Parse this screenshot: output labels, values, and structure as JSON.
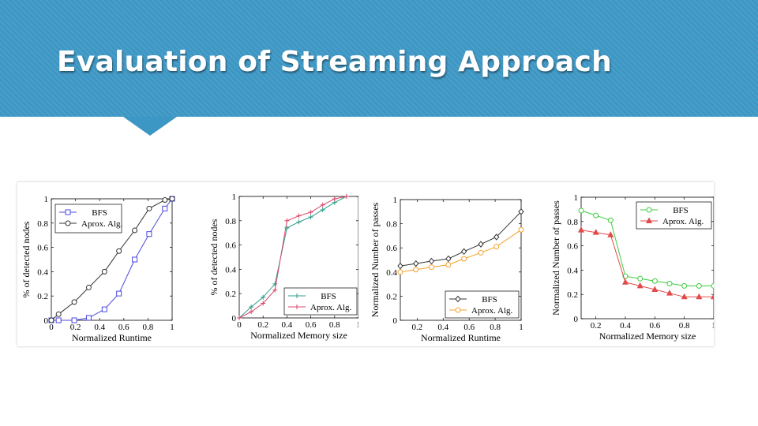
{
  "slide": {
    "title": "Evaluation of Streaming Approach"
  },
  "chart_data": [
    {
      "type": "line",
      "xlabel": "Normalized Runtime",
      "ylabel": "% of detected nodes",
      "xlim": [
        0,
        1
      ],
      "ylim": [
        0,
        1
      ],
      "xticks": [
        0,
        0.2,
        0.4,
        0.6,
        0.8,
        1
      ],
      "yticks": [
        0,
        0.2,
        0.4,
        0.6,
        0.8,
        1
      ],
      "xtick_labels": [
        "0",
        "0.2",
        "0.4",
        "0.6",
        "0.8",
        "1"
      ],
      "ytick_labels": [
        "0",
        "0.2",
        "0.4",
        "0.6",
        "0.8",
        "1"
      ],
      "legend": "top-left",
      "series": [
        {
          "name": "BFS",
          "color": "#4a4ae0",
          "marker": "square",
          "x": [
            0,
            0.06,
            0.19,
            0.31,
            0.44,
            0.56,
            0.69,
            0.81,
            0.94,
            1
          ],
          "y": [
            0,
            0,
            0,
            0.02,
            0.09,
            0.22,
            0.5,
            0.71,
            0.92,
            1
          ]
        },
        {
          "name": "Aprox. Alg.",
          "color": "#333333",
          "marker": "circle",
          "x": [
            0,
            0.06,
            0.19,
            0.31,
            0.44,
            0.56,
            0.69,
            0.81,
            0.94,
            1
          ],
          "y": [
            0,
            0.05,
            0.15,
            0.27,
            0.4,
            0.57,
            0.74,
            0.92,
            0.99,
            1
          ]
        }
      ]
    },
    {
      "type": "line",
      "xlabel": "Normalized Memory size",
      "ylabel": "% of detected nodes",
      "xlim": [
        0,
        1
      ],
      "ylim": [
        0,
        1
      ],
      "xticks": [
        0,
        0.2,
        0.4,
        0.6,
        0.8,
        1
      ],
      "yticks": [
        0,
        0.2,
        0.4,
        0.6,
        0.8,
        1
      ],
      "xtick_labels": [
        "0",
        "0.2",
        "0.4",
        "0.6",
        "0.8",
        "1"
      ],
      "ytick_labels": [
        "0",
        "0.2",
        "0.4",
        "0.6",
        "0.8",
        "1"
      ],
      "legend": "bottom-right",
      "series": [
        {
          "name": "BFS",
          "color": "#2e9c8a",
          "marker": "plus",
          "x": [
            0,
            0.1,
            0.2,
            0.3,
            0.4,
            0.5,
            0.6,
            0.7,
            0.8,
            0.9
          ],
          "y": [
            0,
            0.09,
            0.17,
            0.28,
            0.74,
            0.79,
            0.83,
            0.89,
            0.95,
            1
          ]
        },
        {
          "name": "Aprox. Alg.",
          "color": "#d94a6c",
          "marker": "plus",
          "x": [
            0,
            0.1,
            0.2,
            0.3,
            0.4,
            0.5,
            0.6,
            0.7,
            0.8,
            0.9
          ],
          "y": [
            0,
            0.05,
            0.12,
            0.23,
            0.8,
            0.84,
            0.87,
            0.93,
            0.98,
            1
          ]
        }
      ]
    },
    {
      "type": "line",
      "xlabel": "Normalized Runtime",
      "ylabel": "Normalized Number of passes",
      "xlim": [
        0.07,
        1
      ],
      "ylim": [
        0,
        1
      ],
      "xticks": [
        0.2,
        0.4,
        0.6,
        0.8,
        1
      ],
      "yticks": [
        0,
        0.2,
        0.4,
        0.6,
        0.8,
        1
      ],
      "xtick_labels": [
        "0.2",
        "0.4",
        "0.6",
        "0.8",
        "1"
      ],
      "ytick_labels": [
        "0",
        "0.2",
        "0.4",
        "0.6",
        "0.8",
        "1"
      ],
      "legend": "bottom-right",
      "series": [
        {
          "name": "BFS",
          "color": "#333333",
          "marker": "diamond",
          "x": [
            0.07,
            0.19,
            0.31,
            0.44,
            0.56,
            0.69,
            0.81,
            1
          ],
          "y": [
            0.45,
            0.47,
            0.49,
            0.51,
            0.57,
            0.63,
            0.69,
            0.9
          ]
        },
        {
          "name": "Aprox. Alg.",
          "color": "#f5a02a",
          "marker": "circle",
          "x": [
            0.07,
            0.19,
            0.31,
            0.44,
            0.56,
            0.69,
            0.81,
            1
          ],
          "y": [
            0.4,
            0.42,
            0.44,
            0.46,
            0.51,
            0.56,
            0.61,
            0.75
          ]
        }
      ]
    },
    {
      "type": "line",
      "xlabel": "Normalized Memory size",
      "ylabel": "Normalized Number of passes",
      "xlim": [
        0.1,
        1
      ],
      "ylim": [
        0,
        1
      ],
      "xticks": [
        0.2,
        0.4,
        0.6,
        0.8,
        1
      ],
      "yticks": [
        0,
        0.2,
        0.4,
        0.6,
        0.8,
        1
      ],
      "xtick_labels": [
        "0.2",
        "0.4",
        "0.6",
        "0.8",
        "1"
      ],
      "ytick_labels": [
        "0",
        "0.2",
        "0.4",
        "0.6",
        "0.8",
        "1"
      ],
      "legend": "top-right",
      "series": [
        {
          "name": "BFS",
          "color": "#3dcc3d",
          "marker": "circle",
          "x": [
            0.1,
            0.2,
            0.3,
            0.4,
            0.5,
            0.6,
            0.7,
            0.8,
            0.9,
            1
          ],
          "y": [
            0.89,
            0.85,
            0.81,
            0.35,
            0.33,
            0.31,
            0.29,
            0.27,
            0.27,
            0.27
          ]
        },
        {
          "name": "Aprox. Alg.",
          "color": "#e24a4a",
          "marker": "triangle",
          "x": [
            0.1,
            0.2,
            0.3,
            0.4,
            0.5,
            0.6,
            0.7,
            0.8,
            0.9,
            1
          ],
          "y": [
            0.73,
            0.71,
            0.69,
            0.3,
            0.27,
            0.24,
            0.21,
            0.18,
            0.18,
            0.18
          ]
        }
      ]
    }
  ]
}
